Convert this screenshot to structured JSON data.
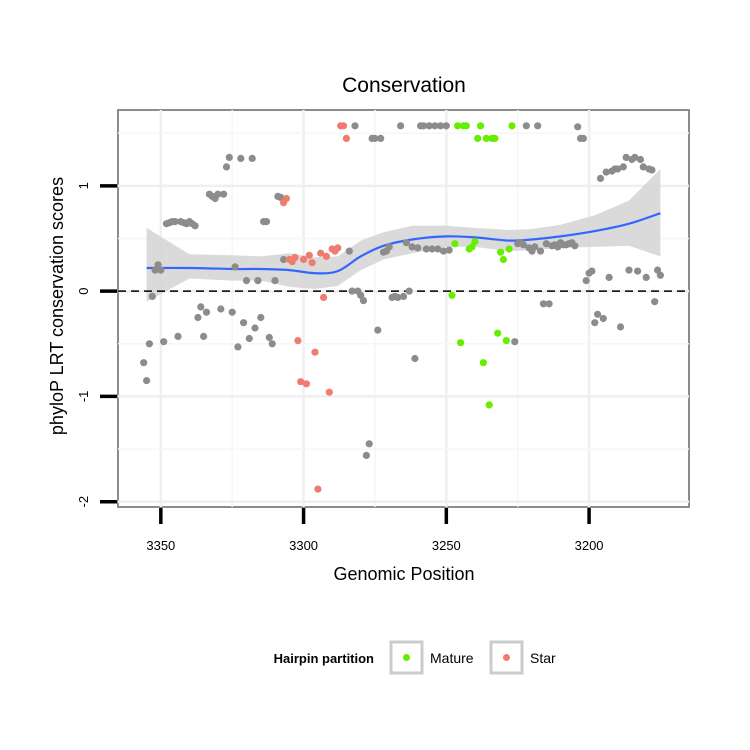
{
  "chart_data": {
    "type": "scatter",
    "title": "Conservation",
    "xlabel": "Genomic Position",
    "ylabel": "phyloP LRT conservation scores",
    "x_reversed": true,
    "xlim": [
      3365,
      3165
    ],
    "ylim": [
      -2.05,
      1.72
    ],
    "x_ticks": [
      3350,
      3300,
      3250,
      3200
    ],
    "y_ticks": [
      -2,
      -1,
      0,
      1
    ],
    "x_tick_labels": [
      "3350",
      "3300",
      "3250",
      "3200"
    ],
    "y_tick_labels": [
      "-2",
      "-1",
      "0",
      "1"
    ],
    "grid": true,
    "reference_line": {
      "y": 0,
      "style": "dashed"
    },
    "legend": {
      "title": "Hairpin partition",
      "position": "bottom",
      "entries": [
        {
          "label": "Mature",
          "color": "#66ee00"
        },
        {
          "label": "Star",
          "color": "#f07c6f"
        }
      ]
    },
    "colors": {
      "other": "#8c8c8c",
      "mature": "#66ee00",
      "star": "#f07c6f",
      "smooth": "#3366ff",
      "ribbon": "#d3d3d3"
    },
    "series": [
      {
        "name": "Other",
        "x": [
          3356,
          3355,
          3354,
          3353,
          3352,
          3351,
          3350,
          3349,
          3348,
          3347,
          3346,
          3345,
          3344,
          3343,
          3342,
          3341,
          3340,
          3339,
          3338,
          3337,
          3336,
          3335,
          3334,
          3333,
          3332,
          3331,
          3330,
          3329,
          3328,
          3327,
          3326,
          3325,
          3324,
          3323,
          3322,
          3321,
          3320,
          3319,
          3318,
          3317,
          3316,
          3315,
          3314,
          3313,
          3312,
          3311,
          3310,
          3309,
          3308,
          3307,
          3284,
          3283,
          3282,
          3281,
          3280,
          3279,
          3278,
          3277,
          3276,
          3275,
          3274,
          3273,
          3272,
          3271,
          3270,
          3269,
          3268,
          3267,
          3266,
          3265,
          3264,
          3263,
          3262,
          3261,
          3260,
          3259,
          3258,
          3257,
          3256,
          3255,
          3254,
          3253,
          3252,
          3251,
          3250,
          3249,
          3226,
          3225,
          3224,
          3223,
          3222,
          3221,
          3220,
          3219,
          3218,
          3217,
          3216,
          3215,
          3214,
          3213,
          3212,
          3211,
          3210,
          3209,
          3208,
          3207,
          3206,
          3205,
          3204,
          3203,
          3202,
          3201,
          3200,
          3199,
          3198,
          3197,
          3196,
          3195,
          3194,
          3193,
          3192,
          3191,
          3190,
          3189,
          3188,
          3187,
          3186,
          3185,
          3184,
          3183,
          3182,
          3181,
          3180,
          3179,
          3178,
          3177,
          3176,
          3175
        ],
        "y": [
          -0.68,
          -0.85,
          -0.5,
          -0.05,
          0.2,
          0.25,
          0.2,
          -0.48,
          0.64,
          0.65,
          0.66,
          0.66,
          -0.43,
          0.66,
          0.65,
          0.64,
          0.66,
          0.64,
          0.62,
          -0.25,
          -0.15,
          -0.43,
          -0.2,
          0.92,
          0.9,
          0.88,
          0.92,
          -0.17,
          0.92,
          1.18,
          1.27,
          -0.2,
          0.23,
          -0.53,
          1.26,
          -0.3,
          0.1,
          -0.45,
          1.26,
          -0.35,
          0.1,
          -0.25,
          0.66,
          0.66,
          -0.44,
          -0.5,
          0.1,
          0.9,
          0.89,
          0.3,
          0.38,
          0.0,
          1.57,
          0.0,
          -0.04,
          -0.09,
          -1.56,
          -1.45,
          1.45,
          1.45,
          -0.37,
          1.45,
          0.37,
          0.38,
          0.42,
          -0.06,
          -0.05,
          -0.06,
          1.57,
          -0.05,
          0.46,
          0.0,
          0.42,
          -0.64,
          0.41,
          1.57,
          1.57,
          0.4,
          1.57,
          0.4,
          1.57,
          0.4,
          1.57,
          0.38,
          1.57,
          0.39,
          -0.48,
          0.45,
          0.46,
          0.44,
          1.57,
          0.41,
          0.38,
          0.42,
          1.57,
          0.38,
          -0.12,
          0.45,
          -0.12,
          0.43,
          0.44,
          0.42,
          0.46,
          0.44,
          0.44,
          0.45,
          0.46,
          0.43,
          1.56,
          1.45,
          1.45,
          0.1,
          0.17,
          0.19,
          -0.3,
          -0.22,
          1.07,
          -0.26,
          1.13,
          0.13,
          1.14,
          1.16,
          1.16,
          -0.34,
          1.18,
          1.27,
          0.2,
          1.25,
          1.27,
          0.19,
          1.25,
          1.18,
          0.13,
          1.16,
          1.15,
          -0.1,
          0.2,
          0.15
        ],
        "color": "#8c8c8c"
      },
      {
        "name": "Star",
        "x": [
          3307,
          3306,
          3305,
          3304,
          3303,
          3302,
          3301,
          3300,
          3299,
          3298,
          3297,
          3296,
          3295,
          3294,
          3293,
          3292,
          3291,
          3290,
          3289,
          3288,
          3287,
          3286,
          3285
        ],
        "y": [
          0.84,
          0.88,
          0.3,
          0.28,
          0.32,
          -0.47,
          -0.86,
          0.3,
          -0.88,
          0.34,
          0.27,
          -0.58,
          -1.88,
          0.36,
          -0.06,
          0.33,
          -0.96,
          0.4,
          0.38,
          0.41,
          1.57,
          1.57,
          1.45
        ],
        "color": "#f07c6f"
      },
      {
        "name": "Mature",
        "x": [
          3248,
          3247,
          3246,
          3245,
          3244,
          3243,
          3242,
          3241,
          3240,
          3239,
          3238,
          3237,
          3236,
          3235,
          3234,
          3233,
          3232,
          3231,
          3230,
          3229,
          3228,
          3227
        ],
        "y": [
          -0.04,
          0.45,
          1.57,
          -0.49,
          1.57,
          1.57,
          0.4,
          0.42,
          0.47,
          1.45,
          1.57,
          -0.68,
          1.45,
          -1.08,
          1.45,
          1.45,
          -0.4,
          0.37,
          0.3,
          -0.47,
          0.4,
          1.57
        ],
        "color": "#66ee00"
      }
    ],
    "smooth": {
      "method": "loess",
      "x": [
        3355,
        3340,
        3325,
        3315,
        3305,
        3296,
        3288,
        3280,
        3272,
        3262,
        3250,
        3240,
        3228,
        3220,
        3210,
        3198,
        3186,
        3175
      ],
      "y": [
        0.22,
        0.22,
        0.21,
        0.21,
        0.2,
        0.17,
        0.19,
        0.33,
        0.43,
        0.49,
        0.52,
        0.51,
        0.48,
        0.49,
        0.52,
        0.57,
        0.64,
        0.74
      ],
      "lower": [
        -0.1,
        0.12,
        0.1,
        0.1,
        0.04,
        0.02,
        0.05,
        0.2,
        0.3,
        0.36,
        0.42,
        0.42,
        0.38,
        0.39,
        0.41,
        0.42,
        0.43,
        0.33
      ],
      "upper": [
        0.6,
        0.35,
        0.34,
        0.33,
        0.36,
        0.32,
        0.33,
        0.48,
        0.56,
        0.62,
        0.62,
        0.6,
        0.58,
        0.59,
        0.63,
        0.72,
        0.86,
        1.16
      ]
    }
  }
}
